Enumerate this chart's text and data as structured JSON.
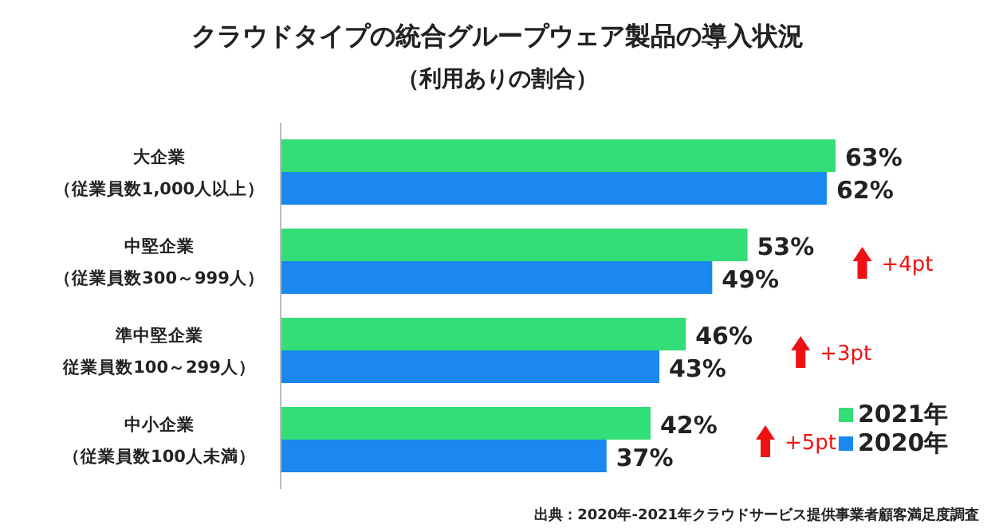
{
  "chart_data": {
    "type": "bar",
    "orientation": "horizontal",
    "title": "クラウドタイプの統合グループウェア製品の導入状況",
    "subtitle": "（利用ありの割合）",
    "categories": [
      "大企業（従業員数1,000人以上）",
      "中堅企業（従業員数300～999人）",
      "準中堅企業従業員数100～299人）",
      "中小企業（従業員数100人未満）"
    ],
    "series": [
      {
        "name": "2021年",
        "color": "#33dd77",
        "values": [
          63,
          53,
          46,
          42
        ],
        "value_labels": [
          "63%",
          "53%",
          "46%",
          "42%"
        ]
      },
      {
        "name": "2020年",
        "color": "#1a88ee",
        "values": [
          62,
          49,
          43,
          37
        ],
        "value_labels": [
          "62%",
          "49%",
          "43%",
          "37%"
        ]
      }
    ],
    "legend": "bottom right",
    "annotations": [
      "+4pt",
      "+3pt",
      "+5pt",
      "出典：2020年-2021年クラウドサービス提供事業者顧客満足度調査"
    ]
  }
}
